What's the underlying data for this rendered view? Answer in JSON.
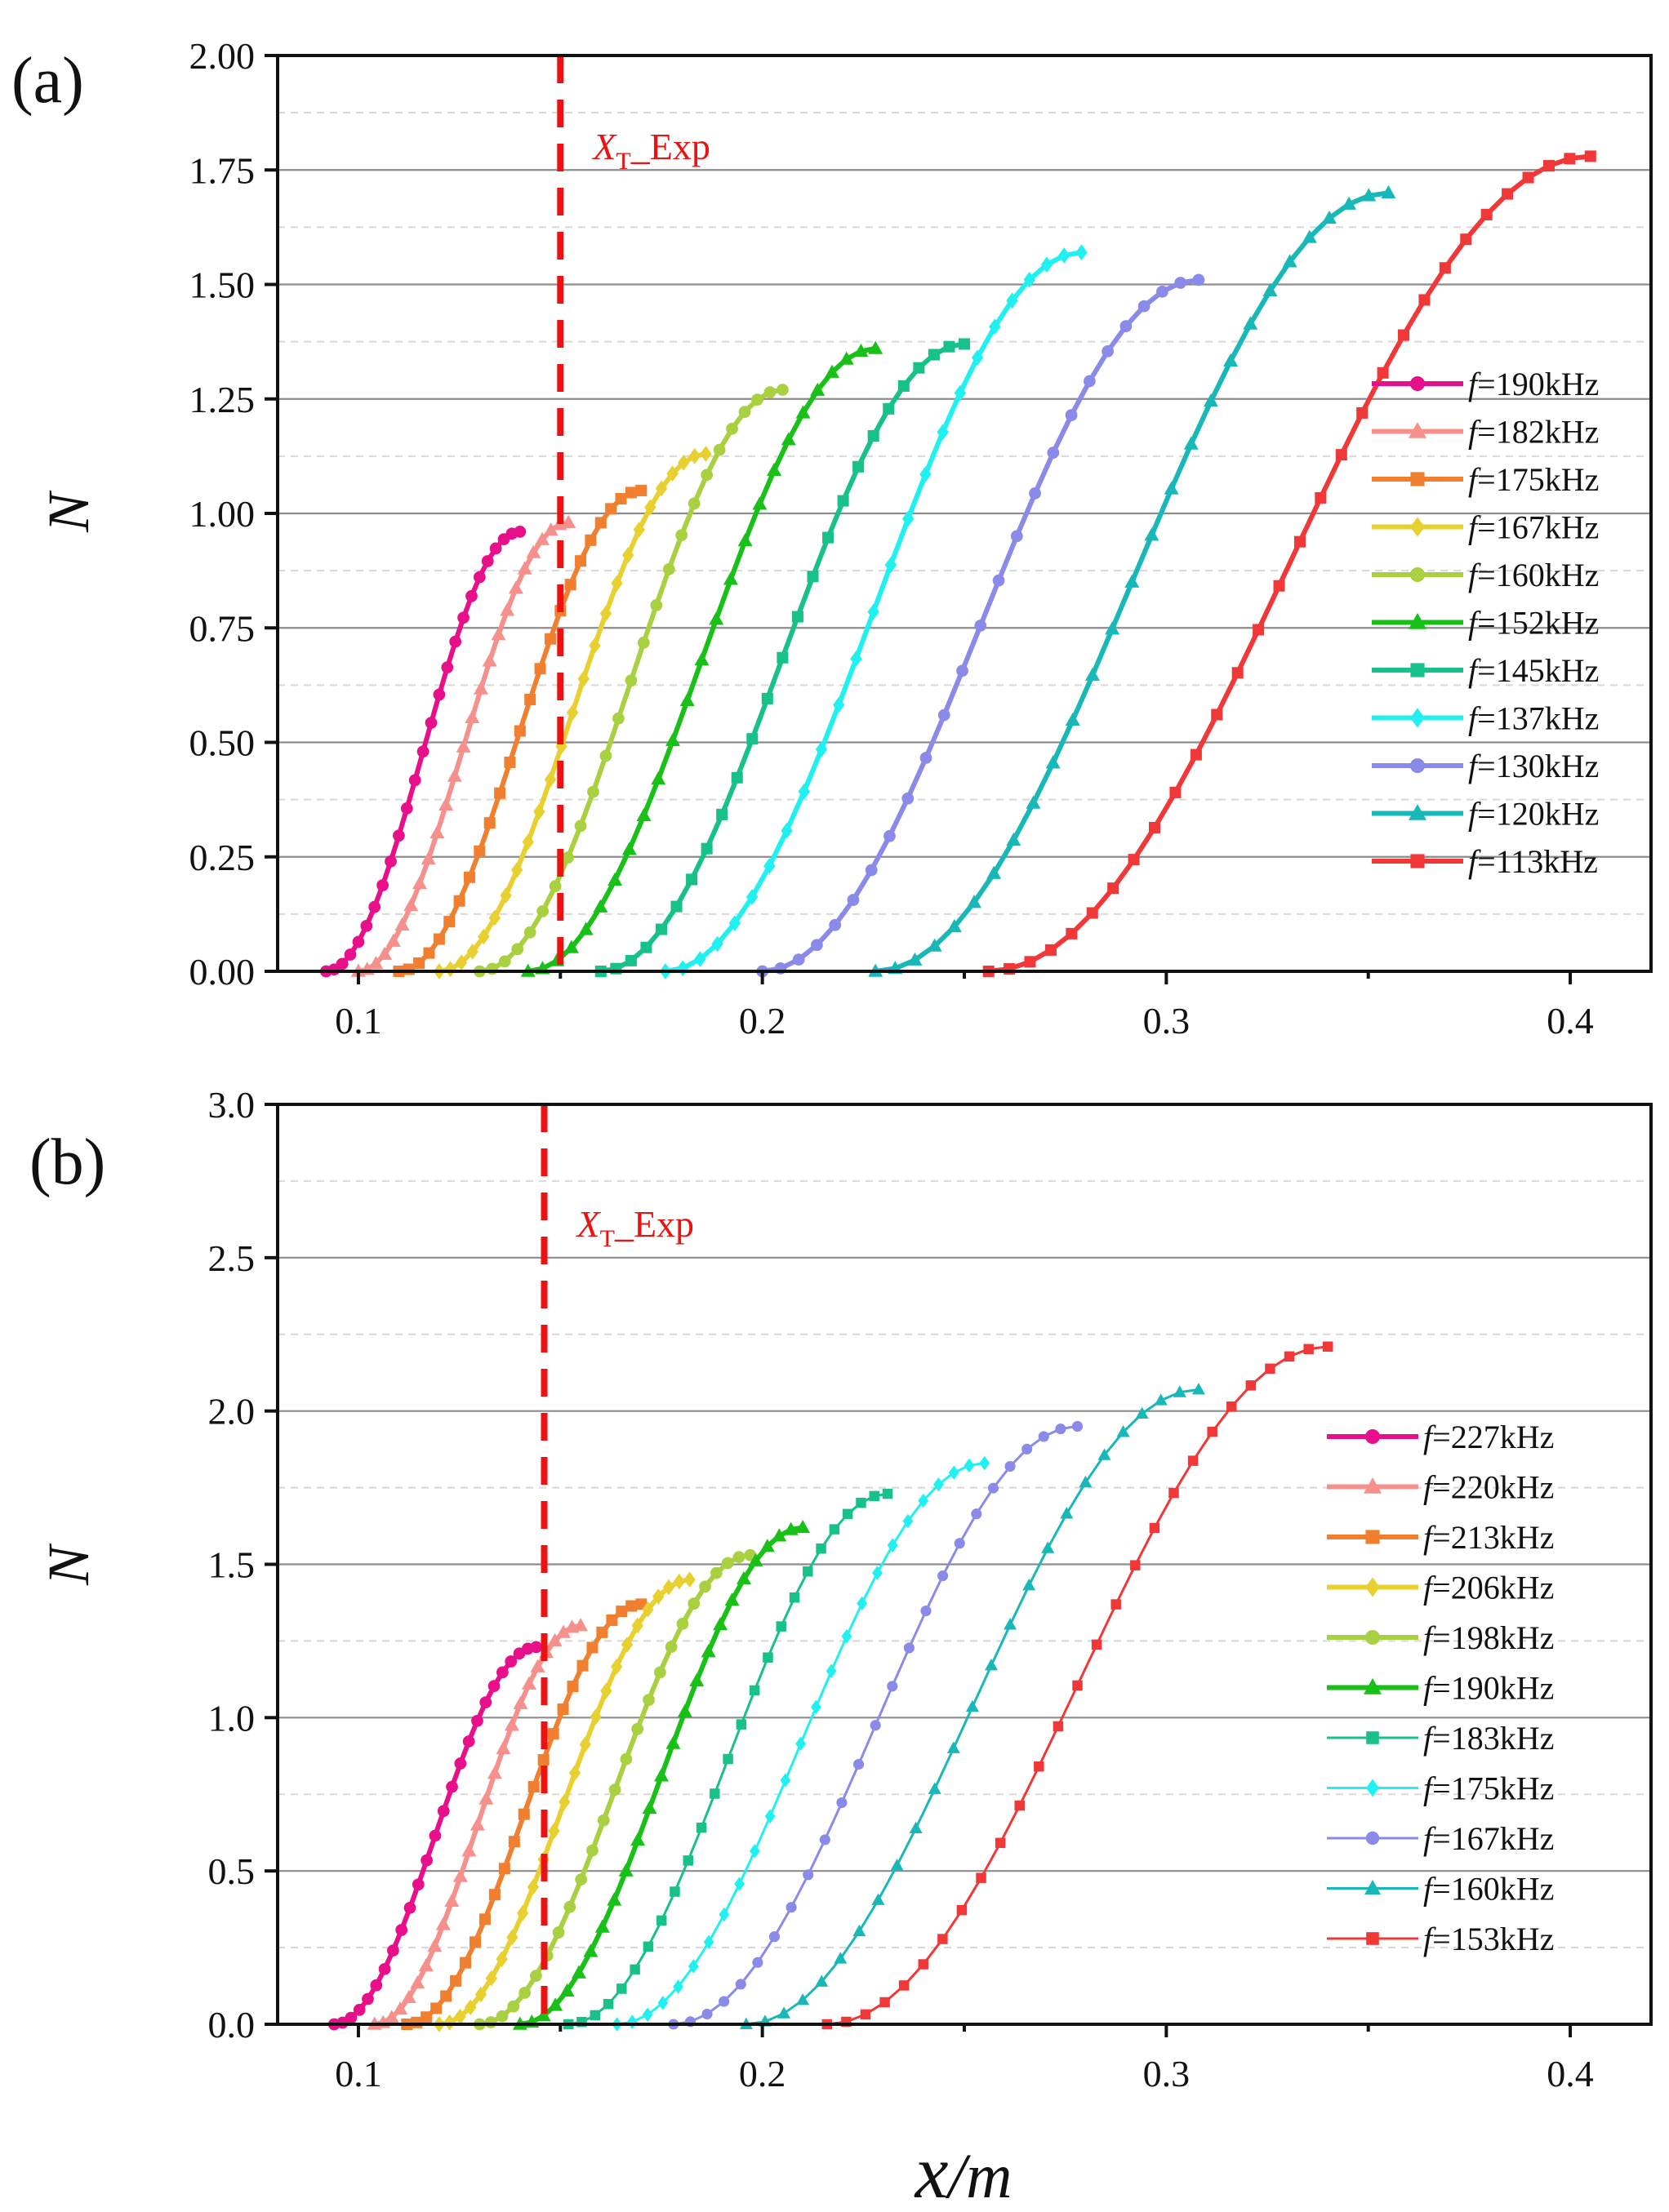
{
  "x_axis_label": {
    "main": "x",
    "suffix": "/m"
  },
  "chart_data": [
    {
      "panel": "(a)",
      "type": "line",
      "xlabel": "x/m",
      "ylabel": "N",
      "xlim": [
        0.08,
        0.42
      ],
      "ylim": [
        0,
        2
      ],
      "xticks": [
        0.1,
        0.2,
        0.3,
        0.4
      ],
      "yticks": [
        0,
        0.25,
        0.5,
        0.75,
        1.0,
        1.25,
        1.5,
        1.75,
        2.0
      ],
      "ytick_labels": [
        "0.00",
        "0.25",
        "0.50",
        "0.75",
        "1.00",
        "1.25",
        "1.50",
        "1.75",
        "2.00"
      ],
      "grid": {
        "major": true,
        "minor_dashed": true
      },
      "exp_line": {
        "x": 0.15,
        "label_main": "X",
        "label_sub": "T",
        "label_tail": "_Exp"
      },
      "legend_location": "right",
      "series": [
        {
          "name": "190kHz",
          "color": "#e8108a",
          "marker": "circle",
          "start": 0.092,
          "end": 0.14,
          "nmax": 0.96,
          "n": 25,
          "lw": 6
        },
        {
          "name": "182kHz",
          "color": "#f5908c",
          "marker": "triangle",
          "start": 0.1,
          "end": 0.152,
          "nmax": 0.98,
          "n": 25,
          "lw": 6
        },
        {
          "name": "175kHz",
          "color": "#f08030",
          "marker": "square",
          "start": 0.11,
          "end": 0.17,
          "nmax": 1.05,
          "n": 25,
          "lw": 6
        },
        {
          "name": "167kHz",
          "color": "#e8d030",
          "marker": "diamond",
          "start": 0.12,
          "end": 0.186,
          "nmax": 1.13,
          "n": 25,
          "lw": 6
        },
        {
          "name": "160kHz",
          "color": "#a8d040",
          "marker": "circle",
          "start": 0.13,
          "end": 0.205,
          "nmax": 1.27,
          "n": 25,
          "lw": 6
        },
        {
          "name": "152kHz",
          "color": "#18c018",
          "marker": "triangle",
          "start": 0.142,
          "end": 0.228,
          "nmax": 1.36,
          "n": 25,
          "lw": 6
        },
        {
          "name": "145kHz",
          "color": "#18c08a",
          "marker": "square",
          "start": 0.16,
          "end": 0.25,
          "nmax": 1.37,
          "n": 25,
          "lw": 6
        },
        {
          "name": "137kHz",
          "color": "#20f0f0",
          "marker": "diamond",
          "start": 0.176,
          "end": 0.279,
          "nmax": 1.57,
          "n": 25,
          "lw": 6
        },
        {
          "name": "130kHz",
          "color": "#8a8ae8",
          "marker": "circle",
          "start": 0.2,
          "end": 0.308,
          "nmax": 1.51,
          "n": 25,
          "lw": 6
        },
        {
          "name": "120kHz",
          "color": "#18b8b8",
          "marker": "triangle",
          "start": 0.228,
          "end": 0.355,
          "nmax": 1.7,
          "n": 27,
          "lw": 6
        },
        {
          "name": "113kHz",
          "color": "#f03838",
          "marker": "square",
          "start": 0.256,
          "end": 0.405,
          "nmax": 1.78,
          "n": 30,
          "lw": 6
        }
      ]
    },
    {
      "panel": "(b)",
      "type": "line",
      "xlabel": "x/m",
      "ylabel": "N",
      "xlim": [
        0.08,
        0.42
      ],
      "ylim": [
        0,
        3
      ],
      "xticks": [
        0.1,
        0.2,
        0.3,
        0.4
      ],
      "yticks": [
        0,
        0.5,
        1.0,
        1.5,
        2.0,
        2.5,
        3.0
      ],
      "ytick_labels": [
        "0.0",
        "0.5",
        "1.0",
        "1.5",
        "2.0",
        "2.5",
        "3.0"
      ],
      "grid": {
        "major": true,
        "minor_dashed": true
      },
      "exp_line": {
        "x": 0.146,
        "label_main": "X",
        "label_sub": "T",
        "label_tail": "_Exp"
      },
      "legend_location": "right",
      "series": [
        {
          "name": "227kHz",
          "color": "#e8108a",
          "marker": "circle",
          "start": 0.094,
          "end": 0.144,
          "nmax": 1.23,
          "n": 25,
          "lw": 6
        },
        {
          "name": "220kHz",
          "color": "#f5908c",
          "marker": "triangle",
          "start": 0.104,
          "end": 0.155,
          "nmax": 1.3,
          "n": 25,
          "lw": 6
        },
        {
          "name": "213kHz",
          "color": "#f08030",
          "marker": "square",
          "start": 0.112,
          "end": 0.17,
          "nmax": 1.37,
          "n": 25,
          "lw": 6
        },
        {
          "name": "206kHz",
          "color": "#e8d030",
          "marker": "diamond",
          "start": 0.12,
          "end": 0.182,
          "nmax": 1.45,
          "n": 25,
          "lw": 6
        },
        {
          "name": "198kHz",
          "color": "#a8d040",
          "marker": "circle",
          "start": 0.13,
          "end": 0.197,
          "nmax": 1.53,
          "n": 25,
          "lw": 6
        },
        {
          "name": "190kHz",
          "color": "#18c018",
          "marker": "triangle",
          "start": 0.14,
          "end": 0.21,
          "nmax": 1.62,
          "n": 25,
          "lw": 6
        },
        {
          "name": "183kHz",
          "color": "#18c08a",
          "marker": "square",
          "start": 0.152,
          "end": 0.231,
          "nmax": 1.73,
          "n": 25,
          "lw": 3
        },
        {
          "name": "175kHz",
          "color": "#20f0f0",
          "marker": "diamond",
          "start": 0.164,
          "end": 0.255,
          "nmax": 1.83,
          "n": 25,
          "lw": 3
        },
        {
          "name": "167kHz",
          "color": "#8a8ae8",
          "marker": "circle",
          "start": 0.178,
          "end": 0.278,
          "nmax": 1.95,
          "n": 25,
          "lw": 3
        },
        {
          "name": "160kHz",
          "color": "#18b8b8",
          "marker": "triangle",
          "start": 0.196,
          "end": 0.308,
          "nmax": 2.07,
          "n": 25,
          "lw": 3
        },
        {
          "name": "153kHz",
          "color": "#f03838",
          "marker": "square",
          "start": 0.216,
          "end": 0.34,
          "nmax": 2.21,
          "n": 27,
          "lw": 3
        }
      ]
    }
  ]
}
